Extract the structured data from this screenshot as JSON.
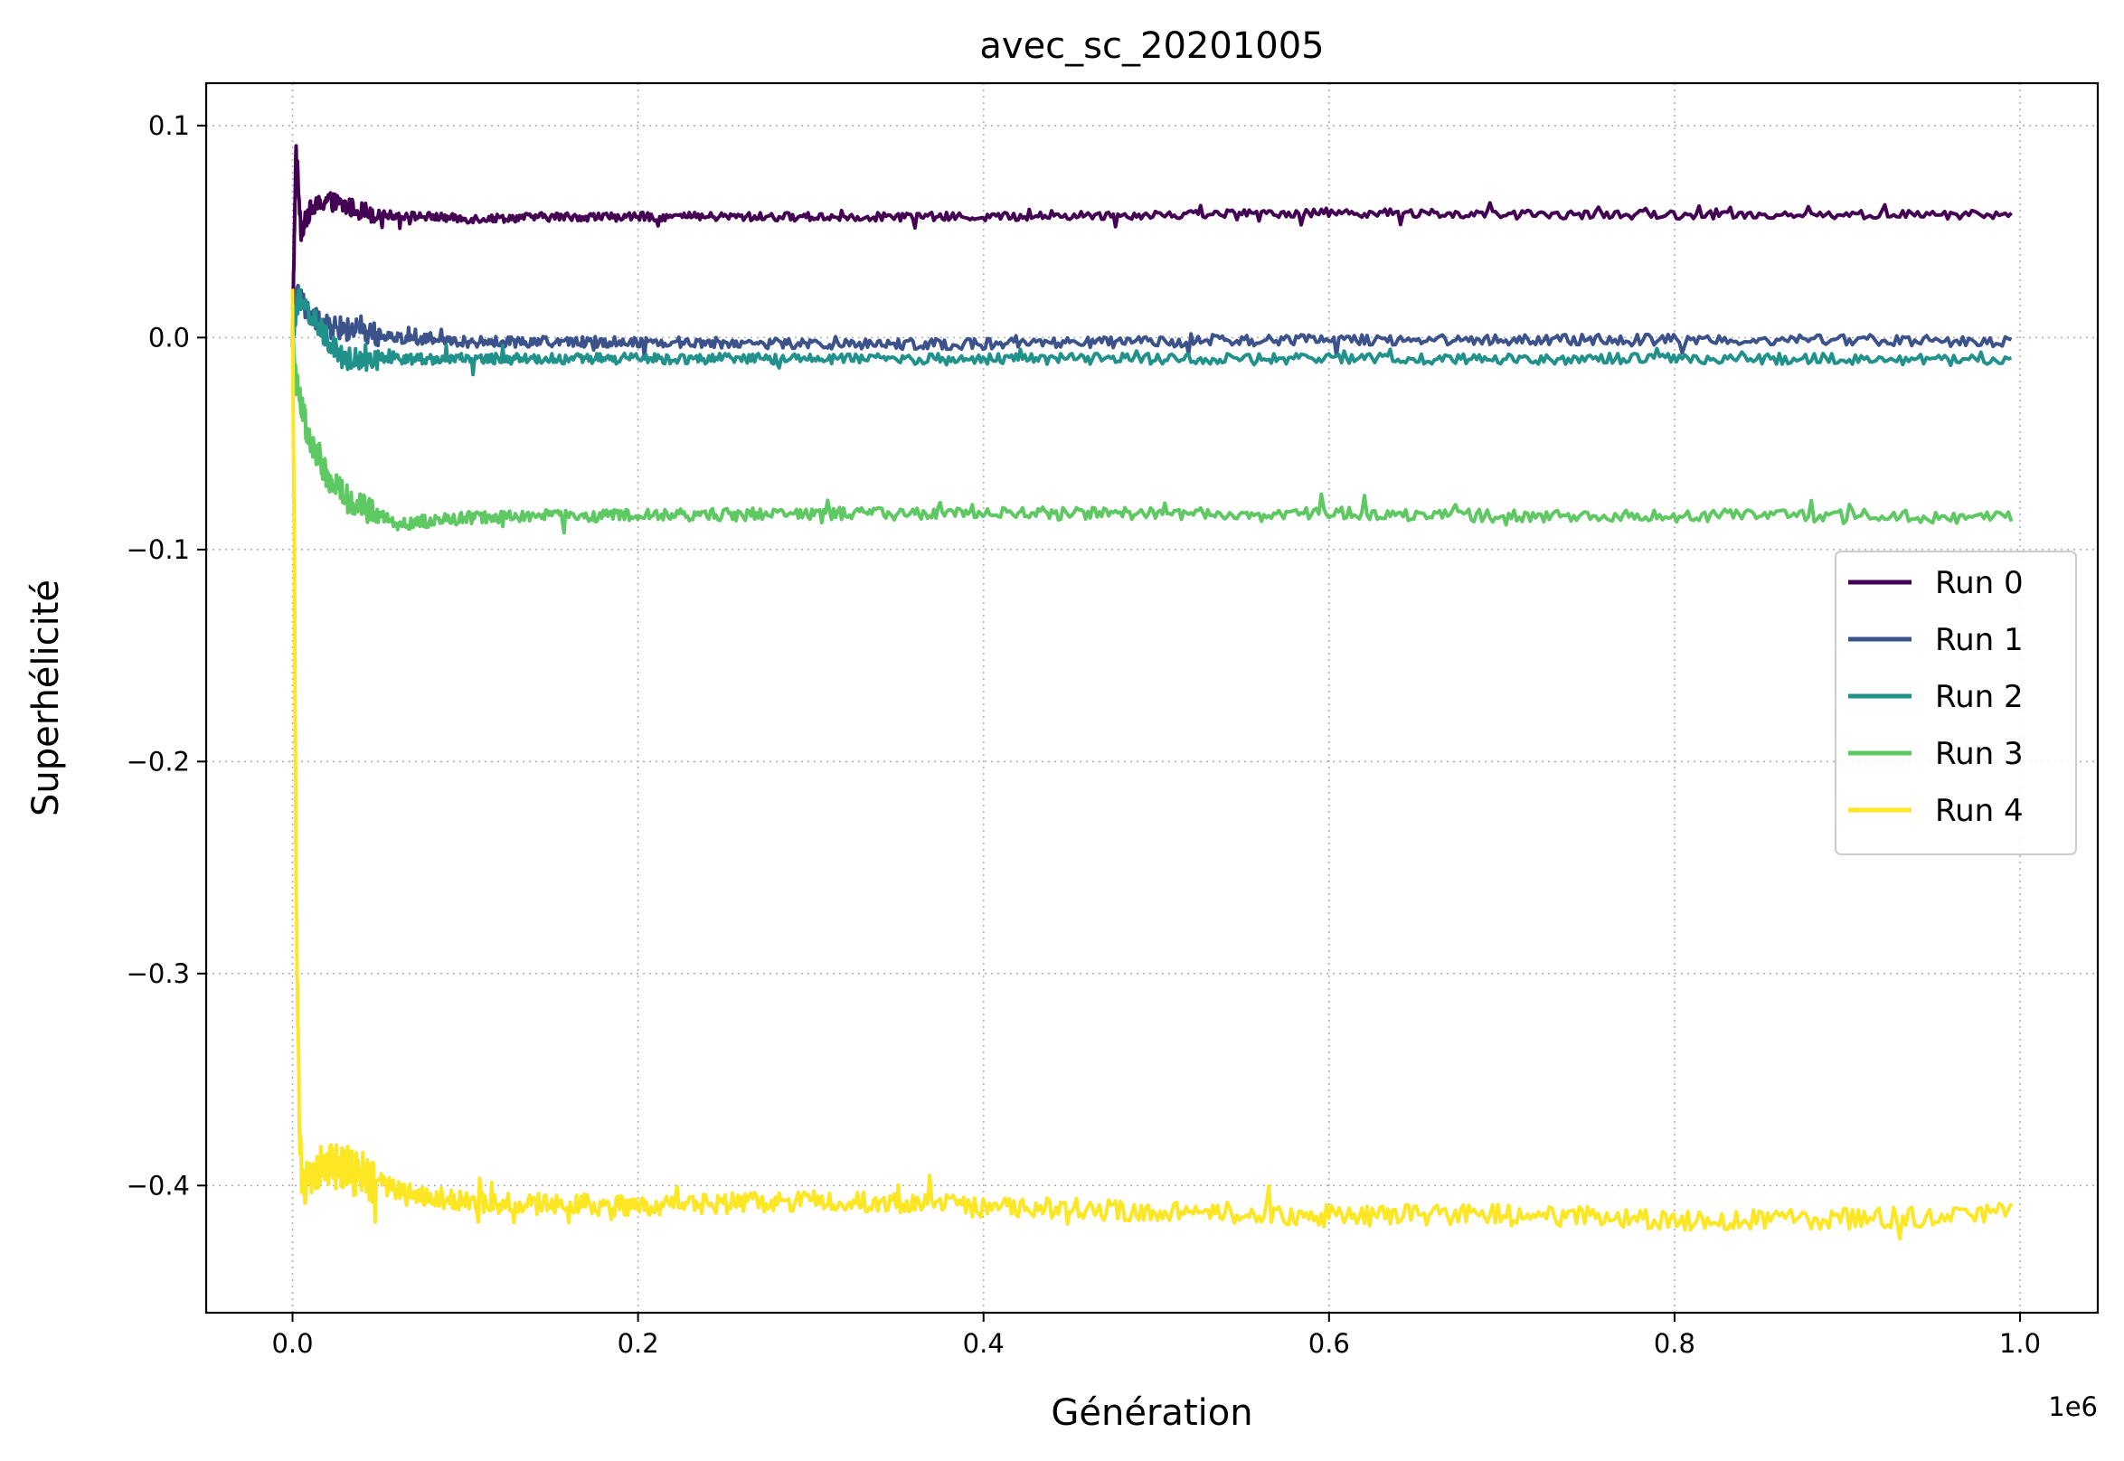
{
  "chart_data": {
    "type": "line",
    "title": "avec_sc_20201005",
    "xlabel": "Génération",
    "ylabel": "Superhélicité",
    "x_offset_text": "1e6",
    "xlim": [
      -0.05,
      1.045
    ],
    "ylim": [
      -0.46,
      0.12
    ],
    "x_scale_multiplier": 1000000,
    "x_ticks": [
      0.0,
      0.2,
      0.4,
      0.6,
      0.8,
      1.0
    ],
    "x_tick_labels": [
      "0.0",
      "0.2",
      "0.4",
      "0.6",
      "0.8",
      "1.0"
    ],
    "y_ticks": [
      0.1,
      0.0,
      -0.1,
      -0.2,
      -0.3,
      -0.4
    ],
    "y_tick_labels": [
      "0.1",
      "0.0",
      "−0.1",
      "−0.2",
      "−0.3",
      "−0.4"
    ],
    "grid": true,
    "legend_position": "center-right",
    "series": [
      {
        "name": "Run 0",
        "color": "#440154",
        "x": [
          0.0,
          0.002,
          0.005,
          0.01,
          0.02,
          0.03,
          0.05,
          0.08,
          0.1,
          0.15,
          0.2,
          0.3,
          0.4,
          0.5,
          0.6,
          0.7,
          0.8,
          0.9,
          0.995
        ],
        "y": [
          0.0,
          0.09,
          0.05,
          0.06,
          0.065,
          0.062,
          0.058,
          0.057,
          0.056,
          0.057,
          0.057,
          0.057,
          0.057,
          0.058,
          0.059,
          0.058,
          0.058,
          0.058,
          0.058
        ],
        "noise": 0.002
      },
      {
        "name": "Run 1",
        "color": "#3b528b",
        "x": [
          0.0,
          0.003,
          0.01,
          0.02,
          0.04,
          0.06,
          0.1,
          0.15,
          0.2,
          0.3,
          0.4,
          0.5,
          0.6,
          0.7,
          0.8,
          0.9,
          0.995
        ],
        "y": [
          0.0,
          0.02,
          0.01,
          0.005,
          0.003,
          0.0,
          -0.002,
          -0.002,
          -0.002,
          -0.003,
          -0.003,
          -0.002,
          -0.001,
          -0.001,
          -0.001,
          -0.001,
          -0.002
        ],
        "noise": 0.0025
      },
      {
        "name": "Run 2",
        "color": "#21918c",
        "x": [
          0.0,
          0.004,
          0.01,
          0.02,
          0.03,
          0.05,
          0.1,
          0.15,
          0.2,
          0.3,
          0.4,
          0.5,
          0.6,
          0.7,
          0.8,
          0.9,
          0.995
        ],
        "y": [
          0.0,
          0.02,
          0.01,
          0.0,
          -0.01,
          -0.01,
          -0.01,
          -0.01,
          -0.01,
          -0.01,
          -0.01,
          -0.01,
          -0.01,
          -0.01,
          -0.01,
          -0.01,
          -0.011
        ],
        "noise": 0.0025
      },
      {
        "name": "Run 3",
        "color": "#5ec962",
        "x": [
          0.0,
          0.002,
          0.01,
          0.02,
          0.03,
          0.04,
          0.06,
          0.1,
          0.15,
          0.2,
          0.3,
          0.4,
          0.5,
          0.6,
          0.7,
          0.8,
          0.9,
          0.995
        ],
        "y": [
          0.0,
          -0.02,
          -0.05,
          -0.065,
          -0.075,
          -0.08,
          -0.088,
          -0.085,
          -0.084,
          -0.084,
          -0.083,
          -0.083,
          -0.083,
          -0.083,
          -0.084,
          -0.084,
          -0.084,
          -0.085
        ],
        "noise": 0.003
      },
      {
        "name": "Run 4",
        "color": "#fde725",
        "x": [
          0.0,
          0.001,
          0.002,
          0.004,
          0.006,
          0.01,
          0.02,
          0.04,
          0.06,
          0.1,
          0.2,
          0.3,
          0.4,
          0.5,
          0.6,
          0.7,
          0.8,
          0.9,
          0.995
        ],
        "y": [
          0.015,
          -0.1,
          -0.25,
          -0.38,
          -0.405,
          -0.395,
          -0.39,
          -0.395,
          -0.402,
          -0.408,
          -0.41,
          -0.407,
          -0.41,
          -0.412,
          -0.414,
          -0.414,
          -0.416,
          -0.416,
          -0.413
        ],
        "noise": 0.005
      }
    ]
  }
}
